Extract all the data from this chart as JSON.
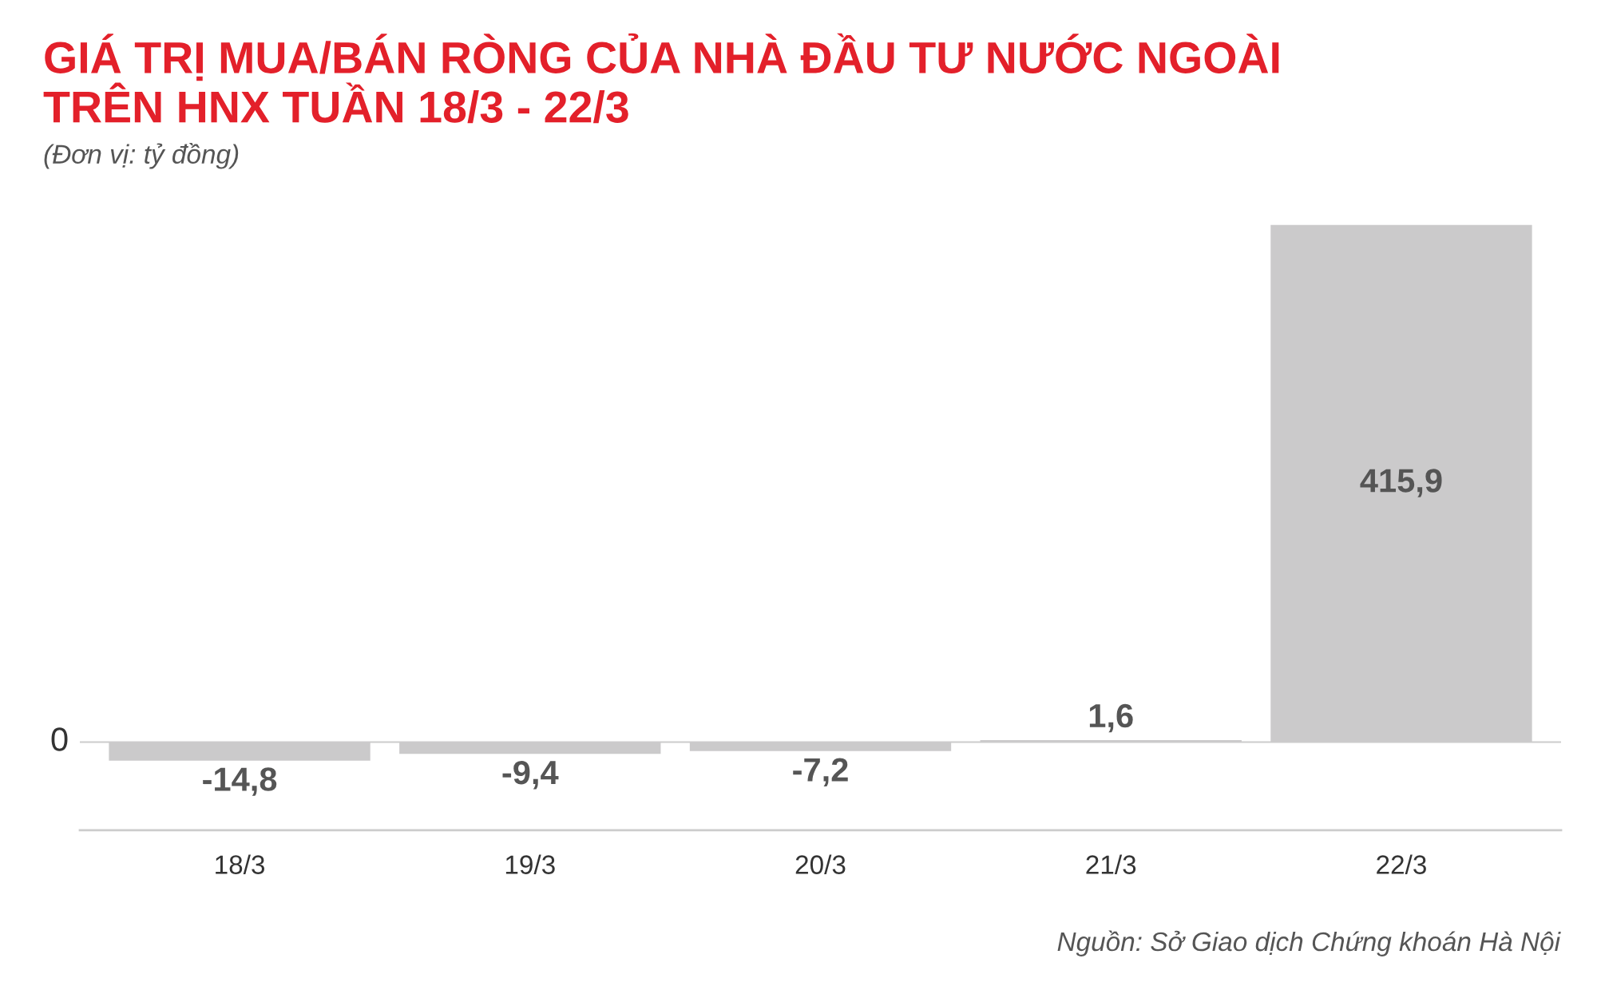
{
  "chart_data": {
    "type": "bar",
    "title": "GIÁ TRỊ MUA/BÁN RÒNG CỦA NHÀ ĐẦU TƯ NƯỚC NGOÀI\nTRÊN HNX TUẦN 18/3 - 22/3",
    "subtitle": "(Đơn vị: tỷ đồng)",
    "categories": [
      "18/3",
      "19/3",
      "20/3",
      "21/3",
      "22/3"
    ],
    "values": [
      -14.8,
      -9.4,
      -7.2,
      1.6,
      415.9
    ],
    "value_labels": [
      "-14,8",
      "-9,4",
      "-7,2",
      "1,6",
      "415,9"
    ],
    "color": "#cbcacb",
    "ref_lines": [
      {
        "axis": "y",
        "value": 0,
        "label": "0",
        "color": "#cccccc"
      }
    ],
    "annotations": [
      "Nguồn: Sở Giao dịch Chứng khoán Hà Nội"
    ]
  }
}
